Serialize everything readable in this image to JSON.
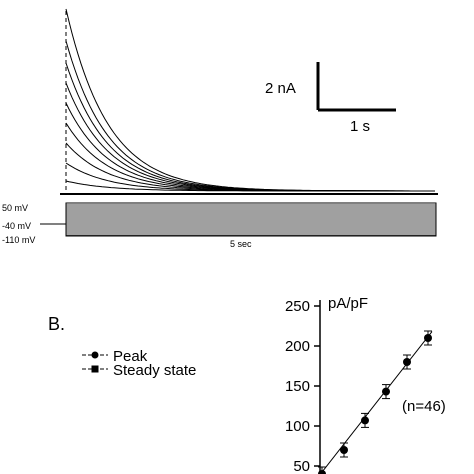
{
  "chart_data": [
    {
      "type": "line",
      "panel": "A",
      "title": "",
      "scale_bar": {
        "current_label": "2 nA",
        "time_label": "1 s"
      },
      "protocol": {
        "voltage_labels": [
          "50 mV",
          "-40 mV",
          "-110 mV"
        ],
        "duration_label": "5 sec"
      },
      "trace_count": 9
    },
    {
      "type": "scatter",
      "panel": "B",
      "panel_label": "B.",
      "ylabel": "pA/pF",
      "yticks": [
        "250",
        "200",
        "150",
        "100",
        "50"
      ],
      "ylim": [
        40,
        260
      ],
      "annotation": "(n=46)",
      "legend_position": "left",
      "series": [
        {
          "name": "Peak",
          "marker": "circle",
          "values": [
            40,
            70,
            107,
            143,
            180,
            210
          ]
        },
        {
          "name": "Steady state",
          "marker": "square",
          "values": []
        }
      ]
    }
  ]
}
